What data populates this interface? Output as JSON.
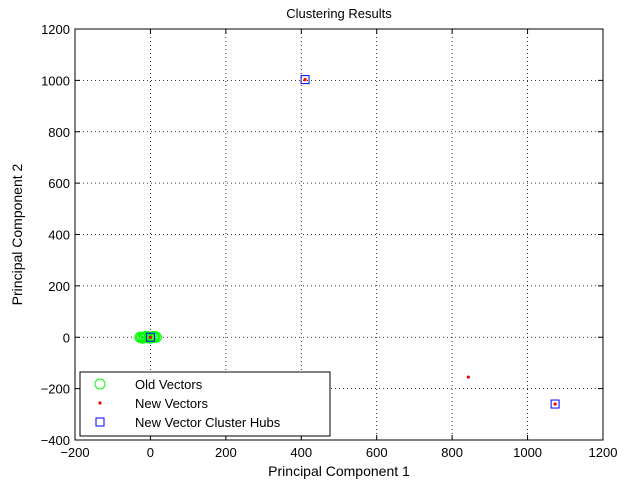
{
  "chart_data": {
    "type": "scatter",
    "title": "Clustering Results",
    "xlabel": "Principal Component 1",
    "ylabel": "Principal Component 2",
    "xlim": [
      -200,
      1200
    ],
    "ylim": [
      -400,
      1200
    ],
    "xticks": [
      -200,
      0,
      200,
      400,
      600,
      800,
      1000,
      1200
    ],
    "yticks": [
      -400,
      -200,
      0,
      200,
      400,
      600,
      800,
      1000,
      1200
    ],
    "grid": true,
    "legend_position": "bottom-left",
    "series": [
      {
        "name": "Old Vectors",
        "marker": "circle",
        "color": "#00ff00",
        "points": [
          {
            "x": -28,
            "y": 0
          },
          {
            "x": -24,
            "y": 0
          },
          {
            "x": -20,
            "y": 0
          },
          {
            "x": -16,
            "y": 0
          },
          {
            "x": -12,
            "y": 0
          },
          {
            "x": -8,
            "y": 0
          },
          {
            "x": -4,
            "y": 0
          },
          {
            "x": 0,
            "y": 0
          },
          {
            "x": 4,
            "y": 0
          },
          {
            "x": 8,
            "y": 0
          },
          {
            "x": 12,
            "y": 0
          },
          {
            "x": 16,
            "y": 0
          },
          {
            "x": -20,
            "y": -4
          },
          {
            "x": -10,
            "y": 4
          },
          {
            "x": 0,
            "y": -4
          },
          {
            "x": 10,
            "y": 4
          }
        ]
      },
      {
        "name": "New Vectors",
        "marker": "dot",
        "color": "#ff0000",
        "points": [
          {
            "x": 0,
            "y": 0
          },
          {
            "x": 410,
            "y": 1003
          },
          {
            "x": 843,
            "y": -155
          },
          {
            "x": 1073,
            "y": -260
          }
        ]
      },
      {
        "name": "New Vector Cluster Hubs",
        "marker": "square",
        "color": "#0000ff",
        "points": [
          {
            "x": 0,
            "y": 0
          },
          {
            "x": 410,
            "y": 1003
          },
          {
            "x": 1073,
            "y": -260
          }
        ]
      }
    ]
  }
}
